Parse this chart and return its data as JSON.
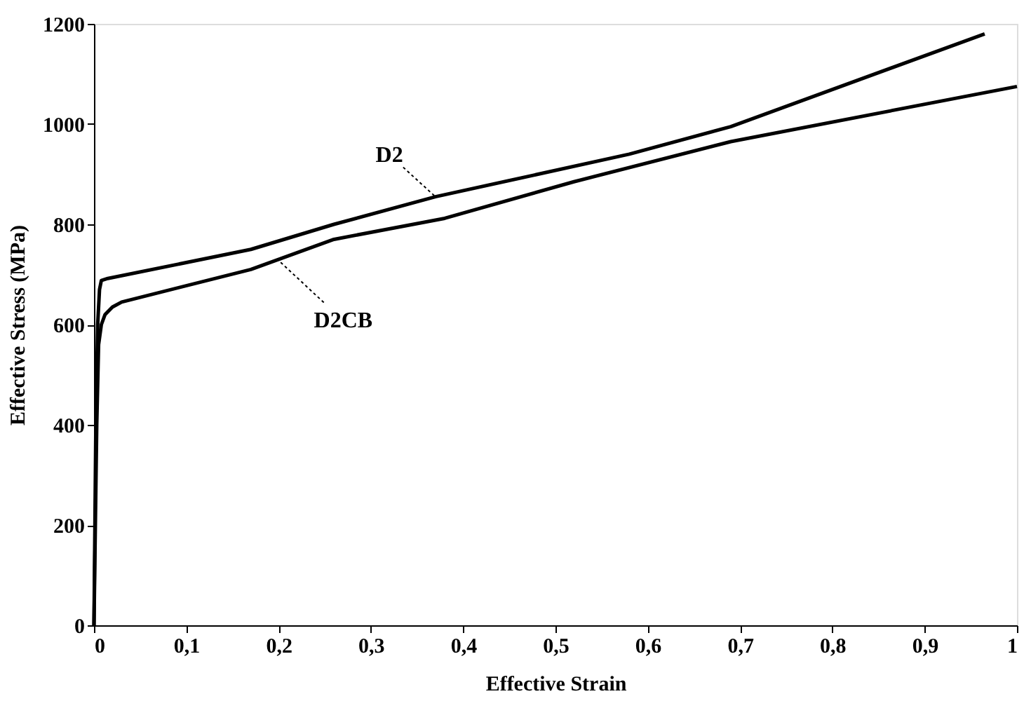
{
  "chart_data": {
    "type": "line",
    "xlabel": "Effective Strain",
    "ylabel": "Effective Stress (MPa)",
    "xlim": [
      0,
      1
    ],
    "ylim": [
      0,
      1200
    ],
    "xticks": [
      0,
      {
        "value": 0.1,
        "label": "0,1"
      },
      {
        "value": 0.2,
        "label": "0,2"
      },
      {
        "value": 0.3,
        "label": "0,3"
      },
      {
        "value": 0.4,
        "label": "0,4"
      },
      {
        "value": 0.5,
        "label": "0,5"
      },
      {
        "value": 0.6,
        "label": "0,6"
      },
      {
        "value": 0.7,
        "label": "0,7"
      },
      {
        "value": 0.8,
        "label": "0,8"
      },
      {
        "value": 0.9,
        "label": "0,9"
      },
      1
    ],
    "yticks": [
      0,
      200,
      400,
      600,
      800,
      1000,
      1200
    ],
    "grid": false,
    "marker": "none",
    "line_style": "solid",
    "series": [
      {
        "color": "#000000",
        "x": [
          0,
          0.002,
          0.004,
          0.006,
          0.008,
          0.015,
          0.17,
          0.26,
          0.37,
          0.58,
          0.69,
          0.965
        ],
        "values": [
          0,
          400,
          600,
          670,
          688,
          692,
          750,
          800,
          855,
          940,
          995,
          1180
        ]
      },
      {
        "color": "#000000",
        "x": [
          0,
          0.003,
          0.005,
          0.008,
          0.012,
          0.02,
          0.03,
          0.17,
          0.26,
          0.38,
          0.52,
          0.69,
          1.0
        ],
        "values": [
          0,
          400,
          560,
          600,
          620,
          635,
          645,
          710,
          770,
          812,
          885,
          965,
          1075
        ]
      }
    ],
    "annotations": [
      {
        "text": "D2",
        "x": 0.37,
        "y": 855
      },
      {
        "text": "D2CB",
        "x": 0.2,
        "y": 728
      }
    ]
  }
}
